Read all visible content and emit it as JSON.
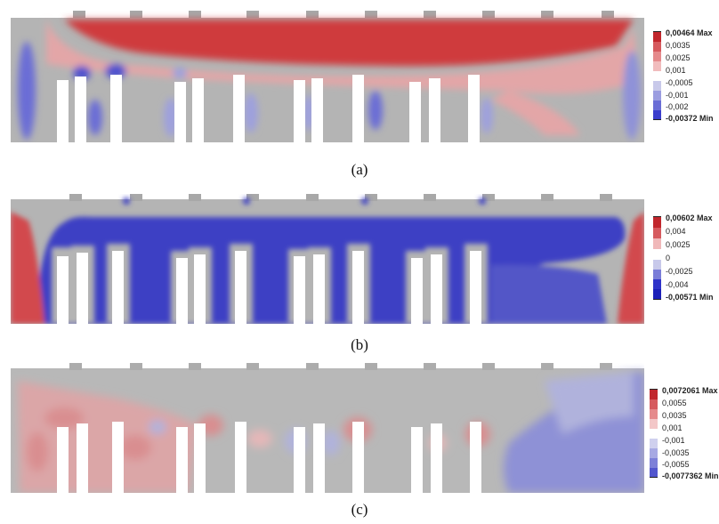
{
  "panels": [
    {
      "id": "a",
      "caption": "(a)",
      "legend": {
        "max_label": "0,00464 Max",
        "min_label": "-0,00372 Min",
        "ticks": [
          "0,0035",
          "0,0025",
          "0,001",
          "-0,0005",
          "-0,001",
          "-0,002"
        ],
        "colors": [
          "#c1272d",
          "#d65a5e",
          "#e58a8c",
          "#f1bcbd",
          "#ffffff",
          "#c8c9ea",
          "#9b9de0",
          "#6a6dd6",
          "#3a3dcc"
        ]
      },
      "palette": {
        "base": "#b4b4b4",
        "red": "#cf3a3e",
        "pink": "#e3a6a7",
        "blue": "#4b4fcf",
        "lightblue": "#9ea0dd"
      }
    },
    {
      "id": "b",
      "caption": "(b)",
      "legend": {
        "max_label": "0,00602 Max",
        "min_label": "-0,00571 Min",
        "ticks": [
          "0,004",
          "0,0025",
          "0",
          "-0,0025",
          "-0,004"
        ],
        "colors": [
          "#c1272d",
          "#d65a5e",
          "#f0b8b9",
          "#ffffff",
          "#c8c9ea",
          "#7a7dd8",
          "#2f33c9",
          "#1c20b8"
        ]
      },
      "palette": {
        "base": "#b4b4b4",
        "red": "#d24a4e",
        "pink": "#e3a6a7",
        "blue": "#3d41c4",
        "lightblue": "#8f92d8"
      }
    },
    {
      "id": "c",
      "caption": "(c)",
      "legend": {
        "max_label": "0,0072061 Max",
        "min_label": "-0,0077362 Min",
        "ticks": [
          "0,0055",
          "0,0035",
          "0,001",
          "-0,001",
          "-0,0035",
          "-0,0055"
        ],
        "colors": [
          "#c1272d",
          "#d65a5e",
          "#e58a8c",
          "#f3c7c8",
          "#ffffff",
          "#cfd0ee",
          "#a7a9e3",
          "#7d80d8",
          "#5256cd"
        ]
      },
      "palette": {
        "base": "#b8b8b8",
        "red": "#d98e90",
        "pink": "#e5b7b8",
        "blue": "#8e91d6",
        "lightblue": "#b0b2dc"
      }
    }
  ]
}
